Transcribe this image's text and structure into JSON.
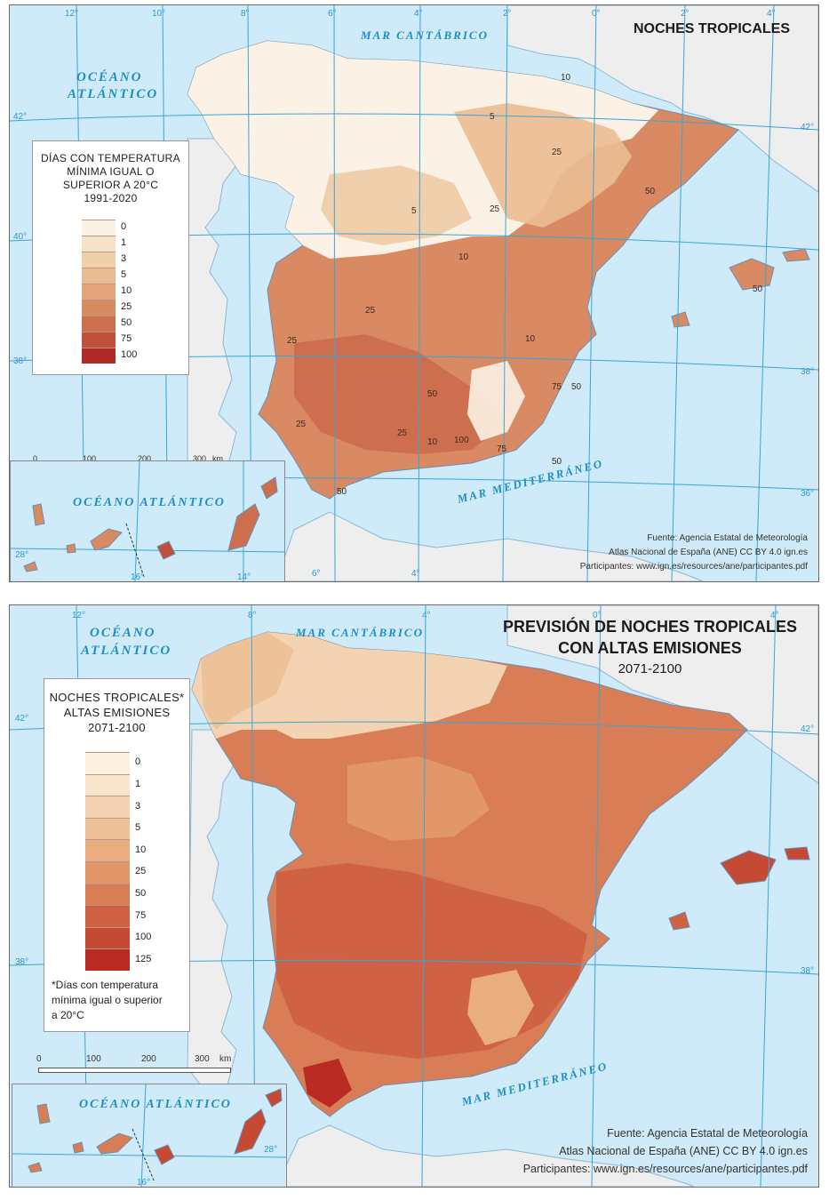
{
  "map1": {
    "title": "NOCHES TROPICALES",
    "legend": {
      "title_lines": [
        "DÍAS CON TEMPERATURA",
        "MÍNIMA IGUAL O",
        "SUPERIOR A 20°C",
        "1991-2020"
      ],
      "ticks": [
        "0",
        "1",
        "3",
        "5",
        "10",
        "25",
        "50",
        "75",
        "100"
      ],
      "colors": [
        "#fbf1e4",
        "#f5e2c8",
        "#f0d0ac",
        "#ebbc92",
        "#e4a57a",
        "#d98a63",
        "#cd6f4e",
        "#c0503a",
        "#b02a26"
      ]
    },
    "seas": {
      "cantabrico": "MAR CANTÁBRICO",
      "oceano_line1": "OCÉANO",
      "oceano_line2": "ATLÁNTICO",
      "mediterraneo": "MAR MEDITERRÁNEO",
      "oceano_canarias": "OCÉANO ATLÁNTICO"
    },
    "grid_top": [
      "12°",
      "10°",
      "8°",
      "6°",
      "4°",
      "2°",
      "0°",
      "2°",
      "4°"
    ],
    "grid_side_left": [
      "42°",
      "40°",
      "38°"
    ],
    "grid_side_right": [
      "42°",
      "38°",
      "36°"
    ],
    "grid_bottom": [
      "6°",
      "4°"
    ],
    "canarias_grid": [
      "28°",
      "16°",
      "14°"
    ],
    "contour_labels": [
      "10",
      "5",
      "25",
      "50",
      "25",
      "10",
      "50",
      "25",
      "25",
      "50",
      "75",
      "50",
      "25",
      "10",
      "25",
      "50",
      "5",
      "10",
      "75",
      "100",
      "50"
    ],
    "scale": {
      "ticks": [
        "0",
        "100",
        "200",
        "300"
      ],
      "unit": "km"
    },
    "source": [
      "Fuente: Agencia Estatal de Meteorología",
      "Atlas Nacional de España (ANE) CC BY 4.0 ign.es",
      "Participantes: www.ign.es/resources/ane/participantes.pdf"
    ]
  },
  "map2": {
    "title_lines": [
      "PREVISIÓN DE NOCHES TROPICALES",
      "CON ALTAS EMISIONES"
    ],
    "subtitle": "2071-2100",
    "legend": {
      "title_lines": [
        "NOCHES TROPICALES*",
        "ALTAS EMISIONES",
        "2071-2100"
      ],
      "ticks": [
        "0",
        "1",
        "3",
        "5",
        "10",
        "25",
        "50",
        "75",
        "100",
        "125"
      ],
      "colors": [
        "#fdf1e2",
        "#f8e4cb",
        "#f3d3b1",
        "#eec298",
        "#e9ae80",
        "#e2976a",
        "#d97d56",
        "#cf6244",
        "#c54a33",
        "#b82a22"
      ],
      "note_lines": [
        "*Días con temperatura",
        "mínima igual o superior",
        "a 20°C"
      ]
    },
    "seas": {
      "cantabrico": "MAR CANTÁBRICO",
      "oceano_line1": "OCÉANO",
      "oceano_line2": "ATLÁNTICO",
      "mediterraneo": "MAR MEDITERRÁNEO",
      "oceano_canarias": "OCÉANO ATLÁNTICO"
    },
    "grid_top": [
      "12°",
      "8°",
      "4°",
      "0°",
      "4°"
    ],
    "grid_side_left": [
      "42°",
      "38°"
    ],
    "grid_side_right": [
      "42°",
      "38°"
    ],
    "canarias_grid": [
      "28°",
      "16°"
    ],
    "scale": {
      "ticks": [
        "0",
        "100",
        "200",
        "300"
      ],
      "unit": "km"
    },
    "source": [
      "Fuente:  Agencia Estatal de Meteorología",
      "Atlas Nacional de España (ANE) CC BY 4.0 ign.es",
      "Participantes: www.ign.es/resources/ane/participantes.pdf"
    ]
  }
}
